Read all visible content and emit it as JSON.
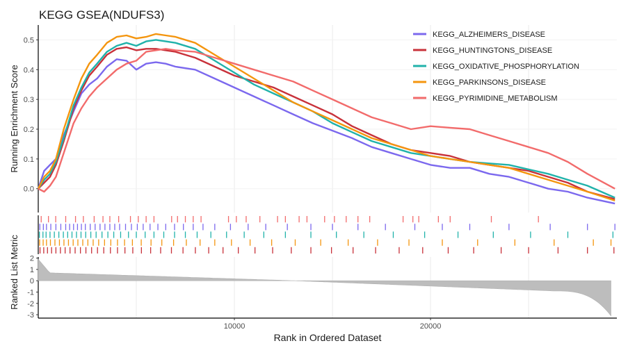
{
  "chart_data": {
    "type": "line",
    "title": "KEGG GSEA(NDUFS3)",
    "xlabel": "Rank in Ordered Dataset",
    "ylabel": "Running Enrichment Score",
    "ylabel_bottom": "Ranked List Metric",
    "xlim": [
      0,
      29500
    ],
    "ylim": [
      -0.08,
      0.55
    ],
    "metric_ylim": [
      -3.3,
      2.1
    ],
    "x_ticks": [
      10000,
      20000
    ],
    "y_ticks": [
      0.0,
      0.1,
      0.2,
      0.3,
      0.4,
      0.5
    ],
    "y_tick_labels": [
      "0.0",
      "0.1",
      "0.2",
      "0.3",
      "0.4",
      "0.5"
    ],
    "metric_ticks": [
      2,
      1,
      0,
      -1,
      -2,
      -3
    ],
    "grid": true,
    "legend_position": "top-right",
    "series": [
      {
        "name": "KEGG_ALZHEIMERS_DISEASE",
        "color": "#7B68EE",
        "x": [
          0,
          300,
          600,
          900,
          1300,
          1800,
          2200,
          2600,
          3000,
          3500,
          4000,
          4500,
          5000,
          5500,
          6000,
          6500,
          7000,
          8000,
          9000,
          10000,
          11000,
          12000,
          13000,
          14000,
          15000,
          16000,
          17000,
          18000,
          19000,
          20000,
          21000,
          22000,
          23000,
          24000,
          25000,
          26000,
          27000,
          28000,
          29400
        ],
        "values": [
          0.0,
          0.06,
          0.08,
          0.1,
          0.18,
          0.26,
          0.32,
          0.35,
          0.37,
          0.41,
          0.435,
          0.43,
          0.4,
          0.42,
          0.425,
          0.42,
          0.41,
          0.4,
          0.37,
          0.34,
          0.31,
          0.28,
          0.25,
          0.22,
          0.195,
          0.17,
          0.14,
          0.12,
          0.1,
          0.08,
          0.07,
          0.07,
          0.05,
          0.04,
          0.02,
          0.0,
          -0.01,
          -0.03,
          -0.05
        ]
      },
      {
        "name": "KEGG_HUNTINGTONS_DISEASE",
        "color": "#C8313A",
        "x": [
          0,
          300,
          600,
          900,
          1300,
          1800,
          2200,
          2600,
          3000,
          3500,
          4000,
          4500,
          5000,
          5500,
          6000,
          6500,
          7000,
          8000,
          9000,
          10000,
          11000,
          12000,
          13000,
          14000,
          15000,
          16000,
          17000,
          18000,
          19000,
          20000,
          21000,
          22000,
          23000,
          24000,
          25000,
          26000,
          27000,
          28000,
          29400
        ],
        "values": [
          0.0,
          0.02,
          0.04,
          0.08,
          0.16,
          0.27,
          0.33,
          0.38,
          0.41,
          0.45,
          0.47,
          0.475,
          0.465,
          0.47,
          0.47,
          0.465,
          0.46,
          0.44,
          0.41,
          0.38,
          0.36,
          0.34,
          0.31,
          0.28,
          0.25,
          0.21,
          0.18,
          0.15,
          0.13,
          0.12,
          0.11,
          0.09,
          0.08,
          0.07,
          0.06,
          0.04,
          0.02,
          -0.01,
          -0.035
        ]
      },
      {
        "name": "KEGG_OXIDATIVE_PHOSPHORYLATION",
        "color": "#20B2AA",
        "x": [
          0,
          300,
          600,
          900,
          1300,
          1800,
          2200,
          2600,
          3000,
          3500,
          4000,
          4500,
          5000,
          5500,
          6000,
          6500,
          7000,
          8000,
          9000,
          10000,
          11000,
          12000,
          13000,
          14000,
          15000,
          16000,
          17000,
          18000,
          19000,
          20000,
          21000,
          22000,
          23000,
          24000,
          25000,
          26000,
          27000,
          28000,
          29400
        ],
        "values": [
          0.0,
          0.03,
          0.05,
          0.09,
          0.17,
          0.28,
          0.34,
          0.39,
          0.42,
          0.46,
          0.48,
          0.49,
          0.48,
          0.495,
          0.5,
          0.495,
          0.49,
          0.47,
          0.43,
          0.39,
          0.35,
          0.32,
          0.29,
          0.26,
          0.22,
          0.19,
          0.16,
          0.14,
          0.12,
          0.11,
          0.1,
          0.09,
          0.085,
          0.08,
          0.065,
          0.05,
          0.03,
          0.01,
          -0.03
        ]
      },
      {
        "name": "KEGG_PARKINSONS_DISEASE",
        "color": "#F4950E",
        "x": [
          0,
          300,
          600,
          900,
          1300,
          1800,
          2200,
          2600,
          3000,
          3500,
          4000,
          4500,
          5000,
          5500,
          6000,
          6500,
          7000,
          8000,
          9000,
          10000,
          11000,
          12000,
          13000,
          14000,
          15000,
          16000,
          17000,
          18000,
          19000,
          20000,
          21000,
          22000,
          23000,
          24000,
          25000,
          26000,
          27000,
          28000,
          29400
        ],
        "values": [
          0.0,
          0.04,
          0.06,
          0.1,
          0.2,
          0.3,
          0.37,
          0.42,
          0.45,
          0.49,
          0.51,
          0.515,
          0.505,
          0.51,
          0.52,
          0.515,
          0.51,
          0.49,
          0.45,
          0.41,
          0.37,
          0.33,
          0.29,
          0.26,
          0.23,
          0.2,
          0.17,
          0.15,
          0.13,
          0.11,
          0.1,
          0.09,
          0.08,
          0.07,
          0.05,
          0.03,
          0.01,
          -0.01,
          -0.04
        ]
      },
      {
        "name": "KEGG_PYRIMIDINE_METABOLISM",
        "color": "#F26B6B",
        "x": [
          0,
          300,
          600,
          900,
          1300,
          1800,
          2200,
          2600,
          3000,
          3500,
          4000,
          4500,
          5000,
          5500,
          6000,
          6500,
          7000,
          8000,
          9000,
          10000,
          11000,
          12000,
          13000,
          14000,
          15000,
          16000,
          17000,
          18000,
          19000,
          20000,
          21000,
          22000,
          23000,
          24000,
          25000,
          26000,
          27000,
          28000,
          29400
        ],
        "values": [
          0.0,
          -0.01,
          0.01,
          0.04,
          0.12,
          0.22,
          0.27,
          0.31,
          0.34,
          0.37,
          0.4,
          0.42,
          0.43,
          0.46,
          0.465,
          0.47,
          0.465,
          0.46,
          0.44,
          0.42,
          0.4,
          0.38,
          0.36,
          0.33,
          0.3,
          0.27,
          0.24,
          0.22,
          0.2,
          0.21,
          0.205,
          0.2,
          0.18,
          0.16,
          0.14,
          0.12,
          0.09,
          0.05,
          0.0
        ]
      }
    ],
    "hits": [
      {
        "series": "KEGG_PYRIMIDINE_METABOLISM",
        "ranks": [
          150,
          520,
          890,
          1400,
          1900,
          2300,
          2850,
          3300,
          3650,
          4100,
          4700,
          5100,
          5500,
          5900,
          6800,
          7100,
          7500,
          7900,
          8300,
          9700,
          10100,
          10600,
          11300,
          12200,
          12600,
          13300,
          13700,
          14600,
          15100,
          15700,
          16300,
          16900,
          18600,
          19100,
          19400,
          20400,
          21000,
          23100,
          25500
        ]
      },
      {
        "series": "KEGG_ALZHEIMERS_DISEASE",
        "ranks": [
          80,
          260,
          420,
          640,
          900,
          1150,
          1400,
          1600,
          1800,
          2000,
          2200,
          2400,
          2650,
          2900,
          3150,
          3400,
          3650,
          3900,
          4150,
          4450,
          4750,
          5050,
          5350,
          5700,
          6100,
          6500,
          6950,
          7400,
          7900,
          8400,
          9000,
          9800,
          10700,
          11600,
          12700,
          13900,
          15000,
          16300,
          17700,
          19200,
          20600,
          22000,
          24000,
          26100,
          28000,
          29400
        ]
      },
      {
        "series": "KEGG_OXIDATIVE_PHOSPHORYLATION",
        "ranks": [
          60,
          240,
          400,
          600,
          820,
          1050,
          1280,
          1500,
          1720,
          1950,
          2180,
          2420,
          2680,
          2950,
          3250,
          3550,
          3850,
          4200,
          4600,
          5000,
          5450,
          5900,
          6400,
          6950,
          7500,
          8100,
          8800,
          9600,
          10500,
          11500,
          12600,
          13900,
          15200,
          16600,
          18100,
          19700,
          21400,
          23200,
          25100,
          27000,
          29300
        ]
      },
      {
        "series": "KEGG_PARKINSONS_DISEASE",
        "ranks": [
          70,
          250,
          420,
          620,
          850,
          1080,
          1310,
          1540,
          1780,
          2020,
          2270,
          2530,
          2800,
          3080,
          3380,
          3700,
          4040,
          4400,
          4800,
          5250,
          5750,
          6300,
          6900,
          7550,
          8250,
          9000,
          9850,
          10800,
          11900,
          13100,
          14400,
          15800,
          17300,
          18900,
          20600,
          22400,
          24300,
          26300,
          28300,
          29200
        ]
      },
      {
        "series": "KEGG_HUNTINGTONS_DISEASE",
        "ranks": [
          90,
          280,
          470,
          680,
          900,
          1130,
          1370,
          1620,
          1880,
          2150,
          2430,
          2720,
          3020,
          3340,
          3680,
          4040,
          4420,
          4820,
          5260,
          5730,
          6240,
          6790,
          7380,
          8010,
          8690,
          9420,
          10200,
          11050,
          11950,
          12900,
          13900,
          14950,
          16050,
          17200,
          18400,
          19600,
          20900,
          22200,
          23600,
          25000,
          26500,
          28000,
          29350
        ]
      }
    ]
  }
}
